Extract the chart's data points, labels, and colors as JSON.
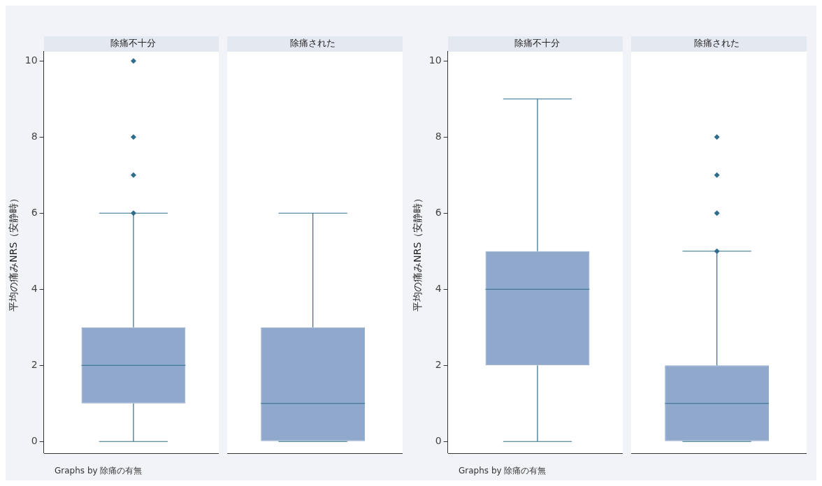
{
  "chart_data": [
    {
      "type": "box",
      "categories": [
        "除痛不十分",
        "除痛された"
      ],
      "ylabel": "平均の痛みNRS（安静時）",
      "ylim": [
        -0.3,
        10.25
      ],
      "yticks": [
        0,
        2,
        4,
        6,
        8,
        10
      ],
      "grid": false,
      "legend": false,
      "marker": "diamond",
      "annotations": [
        "Graphs by 除痛の有無"
      ],
      "series": [
        {
          "color": "#8fa8cc",
          "boxes": [
            {
              "low": 0,
              "q1": 1,
              "median": 2,
              "q3": 3,
              "high": 6,
              "outliers": [
                6,
                7,
                8,
                10
              ]
            },
            {
              "low": 0,
              "q1": 0,
              "median": 1,
              "q3": 3,
              "high": 6
            }
          ]
        }
      ]
    },
    {
      "type": "box",
      "categories": [
        "除痛不十分",
        "除痛された"
      ],
      "ylabel": "平均の痛みNRS（安静時）",
      "ylim": [
        -0.3,
        10.25
      ],
      "yticks": [
        0,
        2,
        4,
        6,
        8,
        10
      ],
      "grid": false,
      "legend": false,
      "marker": "diamond",
      "annotations": [
        "Graphs by 除痛の有無"
      ],
      "series": [
        {
          "color": "#8fa8cc",
          "boxes": [
            {
              "low": 0,
              "q1": 2,
              "median": 4,
              "q3": 5,
              "high": 9
            },
            {
              "low": 0,
              "q1": 0,
              "median": 1,
              "q3": 2,
              "high": 5,
              "outliers": [
                5,
                6,
                7,
                8
              ]
            }
          ]
        }
      ]
    }
  ]
}
